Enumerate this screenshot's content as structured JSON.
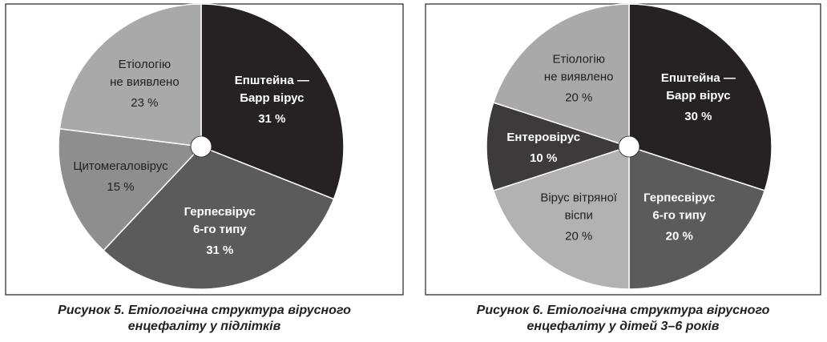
{
  "chart_data": [
    {
      "type": "pie",
      "categories": [
        [
          "Епштейна —",
          "Барр вірус"
        ],
        [
          "Герпесвірус",
          "6-го типу"
        ],
        [
          "Цитомегаловірус"
        ],
        [
          "Етіологію",
          "не виявлено"
        ]
      ],
      "values": [
        31,
        31,
        15,
        23
      ],
      "value_labels": [
        "31 %",
        "31 %",
        "15 %",
        "23 %"
      ],
      "colors": [
        "#262223",
        "#5b5b5b",
        "#8e8e8e",
        "#a9a9a9"
      ],
      "caption": [
        "Рисунок 5. Етіологічна структура вірусного",
        "енцефаліту у підлітків"
      ]
    },
    {
      "type": "pie",
      "categories": [
        [
          "Епштейна —",
          "Барр вірус"
        ],
        [
          "Герпесвірус",
          "6-го типу"
        ],
        [
          "Вірус вітряної",
          "віспи"
        ],
        [
          "Ентеровірус"
        ],
        [
          "Етіологію",
          "не виявлено"
        ]
      ],
      "values": [
        30,
        20,
        20,
        10,
        20
      ],
      "value_labels": [
        "30 %",
        "20 %",
        "20 %",
        "10 %",
        "20 %"
      ],
      "colors": [
        "#262223",
        "#5b5b5b",
        "#b2b2b2",
        "#3c3a3b",
        "#a9a9a9"
      ],
      "caption": [
        "Рисунок 6. Етіологічна структура вірусного",
        "енцефаліту у дітей 3–6 років"
      ]
    }
  ]
}
